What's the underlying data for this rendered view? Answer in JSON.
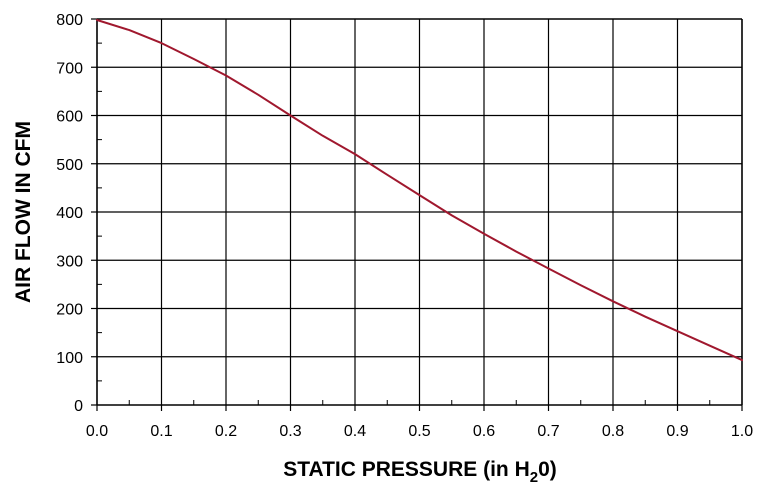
{
  "chart_data": {
    "type": "line",
    "title": "",
    "xlabel": "STATIC PRESSURE (in H₂0)",
    "xlabel_parts": [
      "STATIC PRESSURE (in H",
      "2",
      "0)"
    ],
    "ylabel": "AIR FLOW IN CFM",
    "xlim": [
      0.0,
      1.0
    ],
    "ylim": [
      0,
      800
    ],
    "x_ticks": [
      "0.0",
      "0.1",
      "0.2",
      "0.3",
      "0.4",
      "0.5",
      "0.6",
      "0.7",
      "0.8",
      "0.9",
      "1.0"
    ],
    "y_ticks": [
      "0",
      "100",
      "200",
      "300",
      "400",
      "500",
      "600",
      "700",
      "800"
    ],
    "grid": true,
    "line_color": "#a0182e",
    "series": [
      {
        "x": [
          0.0,
          0.05,
          0.1,
          0.15,
          0.2,
          0.25,
          0.3,
          0.35,
          0.4,
          0.45,
          0.5,
          0.55,
          0.6,
          0.65,
          0.7,
          0.75,
          0.8,
          0.85,
          0.9,
          0.95,
          1.0
        ],
        "y": [
          798,
          777,
          750,
          717,
          683,
          643,
          600,
          558,
          520,
          477,
          435,
          393,
          355,
          318,
          283,
          248,
          215,
          183,
          153,
          123,
          93
        ]
      }
    ]
  }
}
